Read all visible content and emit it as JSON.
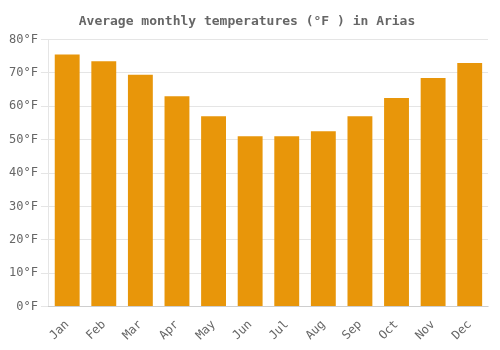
{
  "chart_data": {
    "type": "bar",
    "title": "Average monthly temperatures (°F ) in Arias",
    "categories": [
      "Jan",
      "Feb",
      "Mar",
      "Apr",
      "May",
      "Jun",
      "Jul",
      "Aug",
      "Sep",
      "Oct",
      "Nov",
      "Dec"
    ],
    "values": [
      75.5,
      73.5,
      69.5,
      63.0,
      57.0,
      51.0,
      51.0,
      52.5,
      57.0,
      62.5,
      68.5,
      73.0
    ],
    "color": "#E8960A",
    "ylim": [
      0,
      80
    ],
    "yticks": [
      {
        "value": 0,
        "label": "0°F"
      },
      {
        "value": 10,
        "label": "10°F"
      },
      {
        "value": 20,
        "label": "20°F"
      },
      {
        "value": 30,
        "label": "30°F"
      },
      {
        "value": 40,
        "label": "40°F"
      },
      {
        "value": 50,
        "label": "50°F"
      },
      {
        "value": 60,
        "label": "60°F"
      },
      {
        "value": 70,
        "label": "70°F"
      },
      {
        "value": 80,
        "label": "80°F"
      }
    ],
    "grid": true
  }
}
